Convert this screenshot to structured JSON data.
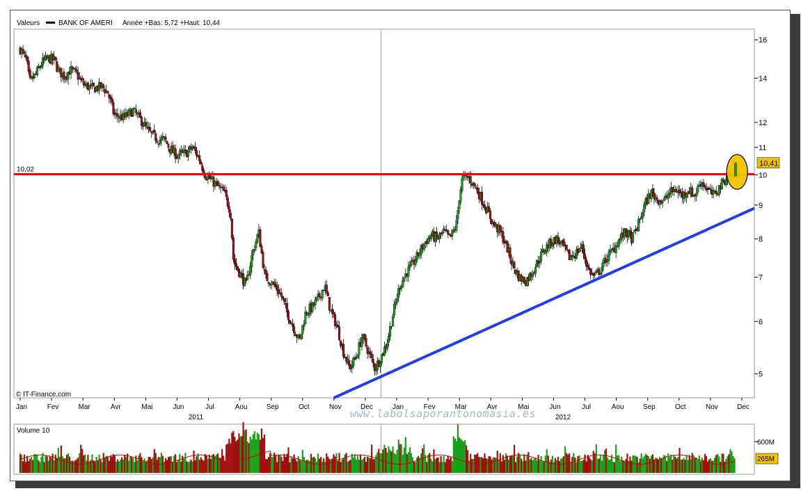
{
  "header": {
    "valeurs_label": "Valeurs",
    "symbol": "BANK OF AMERI",
    "range_text": "Année +Bas: 5,72 +Haut: 10,44"
  },
  "credit": "© IT-Finance.com",
  "watermark": "www.labolsaporantonomasia.es",
  "volume_panel": {
    "title": "Volume 10",
    "ticks": [
      "600M"
    ],
    "last_value_label": "265M",
    "max_value_m": 800,
    "avg_m": 265
  },
  "chart_data": {
    "type": "candlestick",
    "series_name": "BANK OF AMERI",
    "y_scale": "log",
    "ylim": [
      4.6,
      16.6
    ],
    "y_ticks": [
      5,
      6,
      7,
      8,
      9,
      10,
      11,
      12,
      14,
      16
    ],
    "x_ticks": [
      {
        "label": "Jan",
        "t": 0.0
      },
      {
        "label": "Fev",
        "t": 1.0
      },
      {
        "label": "Mar",
        "t": 2.0
      },
      {
        "label": "Avr",
        "t": 3.0
      },
      {
        "label": "Mai",
        "t": 4.0
      },
      {
        "label": "Jun",
        "t": 5.0
      },
      {
        "label": "Jul",
        "t": 6.0
      },
      {
        "label": "Aou",
        "t": 7.0
      },
      {
        "label": "Sep",
        "t": 8.0
      },
      {
        "label": "Oct",
        "t": 9.0
      },
      {
        "label": "Nov",
        "t": 10.0
      },
      {
        "label": "Dec",
        "t": 11.0
      },
      {
        "label": "Jan",
        "t": 12.0
      },
      {
        "label": "Fev",
        "t": 13.0
      },
      {
        "label": "Mar",
        "t": 14.0
      },
      {
        "label": "Avr",
        "t": 15.0
      },
      {
        "label": "Mai",
        "t": 16.0
      },
      {
        "label": "Jun",
        "t": 17.0
      },
      {
        "label": "Jul",
        "t": 18.0
      },
      {
        "label": "Aou",
        "t": 19.0
      },
      {
        "label": "Sep",
        "t": 20.0
      },
      {
        "label": "Oct",
        "t": 21.0
      },
      {
        "label": "Nov",
        "t": 22.0
      },
      {
        "label": "Dec",
        "t": 23.0
      }
    ],
    "years": [
      {
        "label": "2011",
        "t": 5.6
      },
      {
        "label": "2012",
        "t": 17.3
      }
    ],
    "x_range": [
      -0.2,
      23.4
    ],
    "year_separator_t": 11.5,
    "price_path": [
      [
        0.0,
        15.5
      ],
      [
        0.2,
        14.9
      ],
      [
        0.3,
        13.8
      ],
      [
        0.5,
        14.2
      ],
      [
        0.7,
        14.8
      ],
      [
        0.9,
        15.0
      ],
      [
        1.1,
        14.9
      ],
      [
        1.2,
        14.4
      ],
      [
        1.4,
        14.1
      ],
      [
        1.6,
        14.4
      ],
      [
        1.8,
        14.2
      ],
      [
        2.0,
        13.7
      ],
      [
        2.3,
        13.5
      ],
      [
        2.6,
        13.6
      ],
      [
        2.8,
        13.3
      ],
      [
        3.0,
        12.3
      ],
      [
        3.3,
        12.2
      ],
      [
        3.6,
        12.5
      ],
      [
        3.9,
        12.0
      ],
      [
        4.1,
        11.6
      ],
      [
        4.4,
        11.3
      ],
      [
        4.6,
        11.3
      ],
      [
        4.8,
        10.9
      ],
      [
        5.0,
        10.7
      ],
      [
        5.3,
        10.8
      ],
      [
        5.5,
        11.0
      ],
      [
        5.7,
        10.6
      ],
      [
        5.9,
        10.0
      ],
      [
        6.1,
        9.8
      ],
      [
        6.3,
        9.6
      ],
      [
        6.5,
        9.4
      ],
      [
        6.7,
        8.8
      ],
      [
        6.8,
        7.4
      ],
      [
        7.0,
        7.1
      ],
      [
        7.2,
        6.8
      ],
      [
        7.4,
        7.6
      ],
      [
        7.6,
        8.2
      ],
      [
        7.8,
        7.0
      ],
      [
        8.0,
        6.9
      ],
      [
        8.3,
        6.6
      ],
      [
        8.5,
        6.2
      ],
      [
        8.7,
        5.9
      ],
      [
        8.9,
        5.6
      ],
      [
        9.1,
        6.2
      ],
      [
        9.3,
        6.3
      ],
      [
        9.5,
        6.5
      ],
      [
        9.7,
        6.8
      ],
      [
        9.9,
        6.2
      ],
      [
        10.1,
        5.9
      ],
      [
        10.3,
        5.4
      ],
      [
        10.5,
        5.1
      ],
      [
        10.7,
        5.3
      ],
      [
        10.9,
        5.7
      ],
      [
        11.1,
        5.4
      ],
      [
        11.3,
        5.1
      ],
      [
        11.5,
        5.3
      ],
      [
        11.7,
        5.6
      ],
      [
        11.9,
        6.2
      ],
      [
        12.1,
        6.8
      ],
      [
        12.3,
        7.1
      ],
      [
        12.5,
        7.3
      ],
      [
        12.7,
        7.6
      ],
      [
        12.9,
        7.9
      ],
      [
        13.1,
        8.1
      ],
      [
        13.3,
        8.0
      ],
      [
        13.5,
        8.2
      ],
      [
        13.7,
        8.0
      ],
      [
        13.9,
        8.4
      ],
      [
        14.0,
        9.3
      ],
      [
        14.1,
        9.9
      ],
      [
        14.3,
        9.9
      ],
      [
        14.5,
        9.6
      ],
      [
        14.7,
        9.2
      ],
      [
        14.9,
        8.8
      ],
      [
        15.1,
        8.4
      ],
      [
        15.3,
        8.2
      ],
      [
        15.5,
        7.8
      ],
      [
        15.7,
        7.3
      ],
      [
        15.9,
        7.0
      ],
      [
        16.1,
        6.9
      ],
      [
        16.3,
        7.1
      ],
      [
        16.5,
        7.4
      ],
      [
        16.7,
        7.7
      ],
      [
        16.9,
        7.9
      ],
      [
        17.1,
        8.0
      ],
      [
        17.3,
        7.8
      ],
      [
        17.5,
        7.5
      ],
      [
        17.7,
        7.6
      ],
      [
        17.9,
        7.8
      ],
      [
        18.1,
        7.2
      ],
      [
        18.3,
        7.0
      ],
      [
        18.5,
        7.2
      ],
      [
        18.7,
        7.5
      ],
      [
        18.9,
        7.7
      ],
      [
        19.1,
        8.0
      ],
      [
        19.3,
        8.2
      ],
      [
        19.5,
        8.0
      ],
      [
        19.7,
        8.4
      ],
      [
        19.9,
        9.0
      ],
      [
        20.1,
        9.4
      ],
      [
        20.3,
        9.2
      ],
      [
        20.5,
        9.1
      ],
      [
        20.7,
        9.4
      ],
      [
        20.9,
        9.5
      ],
      [
        21.1,
        9.3
      ],
      [
        21.3,
        9.5
      ],
      [
        21.5,
        9.3
      ],
      [
        21.7,
        9.8
      ],
      [
        21.9,
        9.5
      ],
      [
        22.1,
        9.3
      ],
      [
        22.3,
        9.6
      ],
      [
        22.5,
        9.9
      ],
      [
        22.7,
        9.95
      ],
      [
        22.8,
        10.41
      ]
    ],
    "resistance_line": {
      "label": "10,02",
      "value": 10.02,
      "color": "#ff0000"
    },
    "support_line": {
      "from": [
        10.0,
        4.6
      ],
      "to": [
        23.4,
        8.9
      ],
      "color": "#1f3fe6"
    },
    "last_price_label": "10,41",
    "last_price": 10.41,
    "highlight_circle": {
      "t": 22.85,
      "value": 10.1,
      "color": "#f2c200"
    },
    "colors": {
      "up": "#1aa11a",
      "down": "#a01010",
      "resistance": "#ff0000",
      "support": "#1f3fe6",
      "grid": "#d8d8d8",
      "volume_avg": "#cc0000"
    }
  }
}
